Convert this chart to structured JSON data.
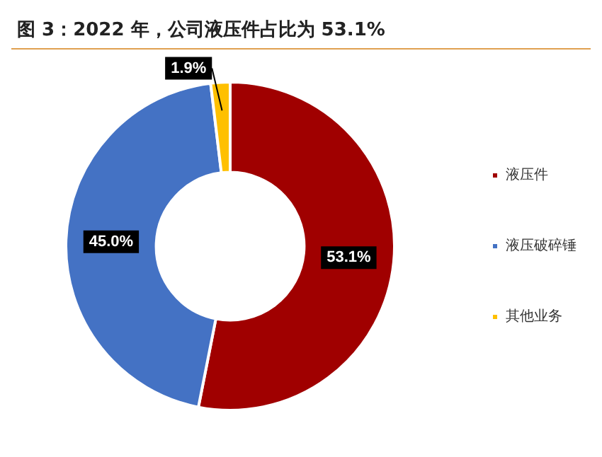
{
  "chart_data": {
    "type": "donut",
    "title": "图 3：2022 年，公司液压件占比为 53.1%",
    "categories": [
      "液压件",
      "液压破碎锤",
      "其他业务"
    ],
    "values": [
      53.1,
      45.0,
      1.9
    ],
    "colors": [
      "#a00000",
      "#4472c4",
      "#ffc000"
    ],
    "value_labels": [
      "53.1%",
      "45.0%",
      "1.9%"
    ],
    "legend": "right"
  }
}
